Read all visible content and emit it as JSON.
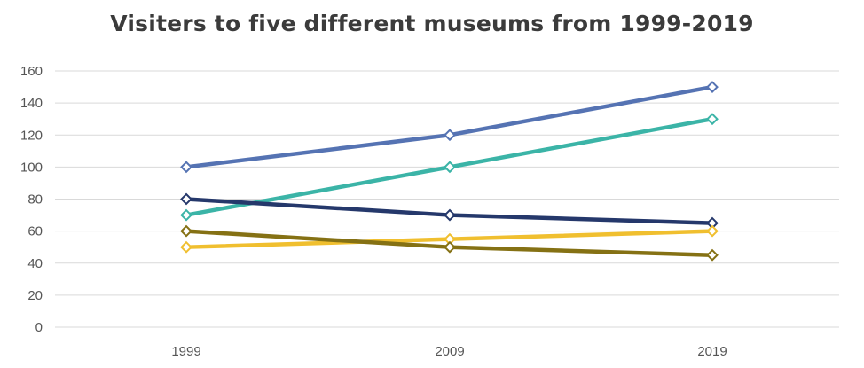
{
  "chart_data": {
    "type": "line",
    "title": "Visiters to five different museums from 1999-2019",
    "xlabel": "",
    "ylabel": "",
    "categories": [
      "1999",
      "2009",
      "2019"
    ],
    "ylim": [
      0,
      160
    ],
    "yticks": [
      "0",
      "20",
      "40",
      "60",
      "80",
      "100",
      "120",
      "140",
      "160"
    ],
    "grid": true,
    "legend": "none",
    "series": [
      {
        "values": [
          100,
          120,
          150
        ],
        "color": "#5573b3"
      },
      {
        "values": [
          70,
          100,
          130
        ],
        "color": "#3bb4a7"
      },
      {
        "values": [
          80,
          70,
          65
        ],
        "color": "#25386b"
      },
      {
        "values": [
          50,
          55,
          60
        ],
        "color": "#f0bf2f"
      },
      {
        "values": [
          60,
          50,
          45
        ],
        "color": "#857114"
      }
    ]
  }
}
